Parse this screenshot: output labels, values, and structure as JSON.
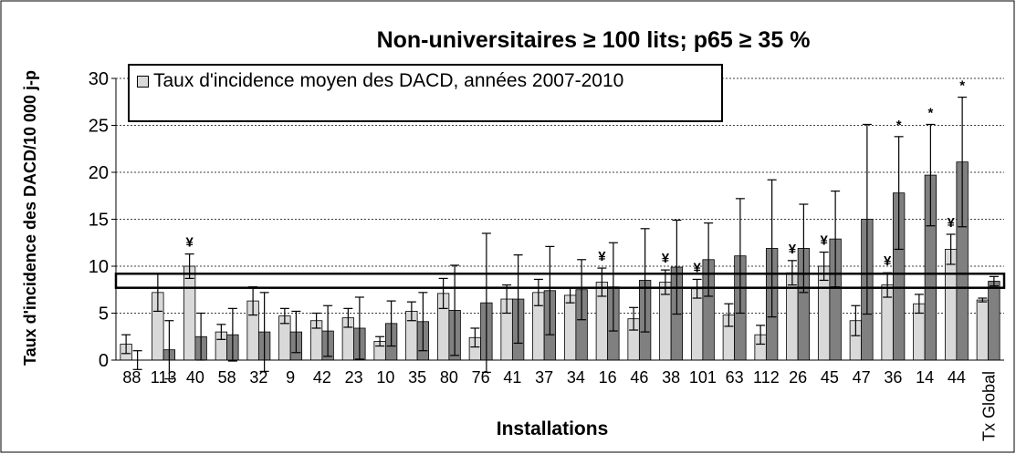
{
  "chart_data": {
    "type": "bar",
    "title": "Non-universitaires ≥ 100 lits; p65 ≥ 35 %",
    "x_label": "Installations",
    "y_label": "Taux d'incidence des DACD/10 000 j-p",
    "categories": [
      "88",
      "113",
      "40",
      "58",
      "32",
      "9",
      "42",
      "23",
      "10",
      "35",
      "80",
      "76",
      "41",
      "37",
      "34",
      "16",
      "46",
      "38",
      "101",
      "63",
      "112",
      "26",
      "45",
      "47",
      "36",
      "14",
      "44",
      "Tx Global"
    ],
    "series": [
      {
        "name": "Taux d'incidence moyen des DACD, années 2007-2010",
        "color": "#d9d9d9",
        "values": [
          1.7,
          7.2,
          10,
          3.0,
          6.3,
          4.7,
          4.2,
          4.5,
          2.0,
          5.2,
          7.1,
          2.4,
          6.5,
          7.2,
          6.9,
          8.3,
          4.4,
          8.3,
          7.6,
          4.8,
          2.7,
          9.3,
          10,
          4.2,
          8.0,
          6.0,
          11.8,
          6.4
        ],
        "errors": [
          1,
          2,
          1.3,
          0.8,
          1.5,
          0.8,
          0.8,
          1,
          0.5,
          1,
          1.6,
          1,
          1.5,
          1.4,
          0.8,
          1.5,
          1.2,
          1.3,
          1,
          1.2,
          1,
          1.3,
          1.5,
          1.6,
          1.3,
          1,
          1.6,
          0.2
        ],
        "markers": [
          null,
          null,
          "¥",
          null,
          null,
          null,
          null,
          null,
          null,
          null,
          null,
          null,
          null,
          null,
          null,
          "¥",
          null,
          "¥",
          "¥",
          null,
          null,
          "¥",
          "¥",
          null,
          "¥",
          null,
          "¥",
          null
        ]
      },
      {
        "color": "#808080",
        "values": [
          0,
          1.1,
          2.5,
          2.7,
          3.0,
          3.0,
          3.1,
          3.4,
          3.9,
          4.1,
          5.3,
          6.1,
          6.5,
          7.4,
          7.5,
          7.8,
          8.5,
          9.9,
          10.7,
          11.1,
          11.9,
          11.9,
          12.9,
          15,
          17.8,
          19.7,
          21.1,
          8.4
        ],
        "errors": [
          1,
          3.1,
          2.5,
          2.8,
          4.2,
          2.2,
          2.7,
          3.3,
          2.4,
          3.1,
          4.8,
          7.4,
          4.7,
          4.7,
          3.2,
          4.7,
          5.5,
          5,
          3.9,
          6.1,
          7.3,
          4.7,
          5.1,
          10.1,
          6,
          5.4,
          6.9,
          0.5
        ],
        "markers": [
          null,
          null,
          null,
          null,
          null,
          null,
          null,
          null,
          null,
          null,
          null,
          null,
          null,
          null,
          null,
          null,
          null,
          null,
          null,
          null,
          null,
          null,
          null,
          null,
          "*",
          "*",
          "*",
          null
        ]
      }
    ],
    "reference_band": [
      7.7,
      9.2
    ],
    "ylim": [
      0,
      30
    ],
    "yticks": [
      0,
      5,
      10,
      15,
      20,
      25,
      30
    ],
    "grid": true
  }
}
